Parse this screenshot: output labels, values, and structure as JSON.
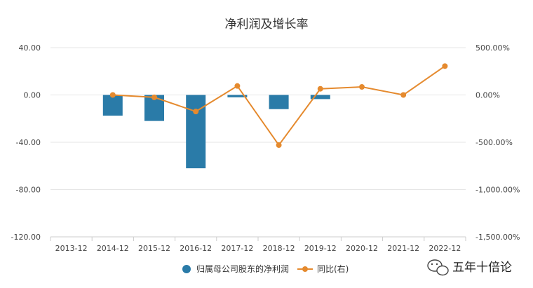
{
  "watermark": {
    "text": "五年十倍论",
    "icon": "wechat-icon"
  },
  "chart_data": {
    "type": "bar",
    "title": "净利润及增长率",
    "categories": [
      "2013-12",
      "2014-12",
      "2015-12",
      "2016-12",
      "2017-12",
      "2018-12",
      "2019-12",
      "2020-12",
      "2021-12",
      "2022-12"
    ],
    "y_left": {
      "ylim": [
        -120,
        40
      ],
      "ticks": [
        "40.00",
        "0.00",
        "-40.00",
        "-80.00",
        "-120.00"
      ],
      "tick_values": [
        40,
        0,
        -40,
        -80,
        -120
      ]
    },
    "y_right": {
      "ylim": [
        -1500,
        500
      ],
      "ticks": [
        "500.00%",
        "0.00%",
        "-500.00%",
        "-1,000.00%",
        "-1,500.00%"
      ],
      "tick_values": [
        500,
        0,
        -500,
        -1000,
        -1500
      ]
    },
    "series": [
      {
        "name": "归属母公司股东的净利润",
        "type": "bar",
        "axis": "left",
        "color": "#2a7ba8",
        "values": [
          0,
          -17.5,
          -22,
          -62,
          -2,
          -12,
          -3.5,
          0,
          0,
          0
        ]
      },
      {
        "name": "同比(右)",
        "type": "line",
        "axis": "right",
        "color": "#e58a2e",
        "values": [
          null,
          0,
          -25,
          -175,
          95,
          -530,
          65,
          85,
          0,
          305
        ]
      }
    ],
    "grid": true,
    "legend": "bottom"
  }
}
